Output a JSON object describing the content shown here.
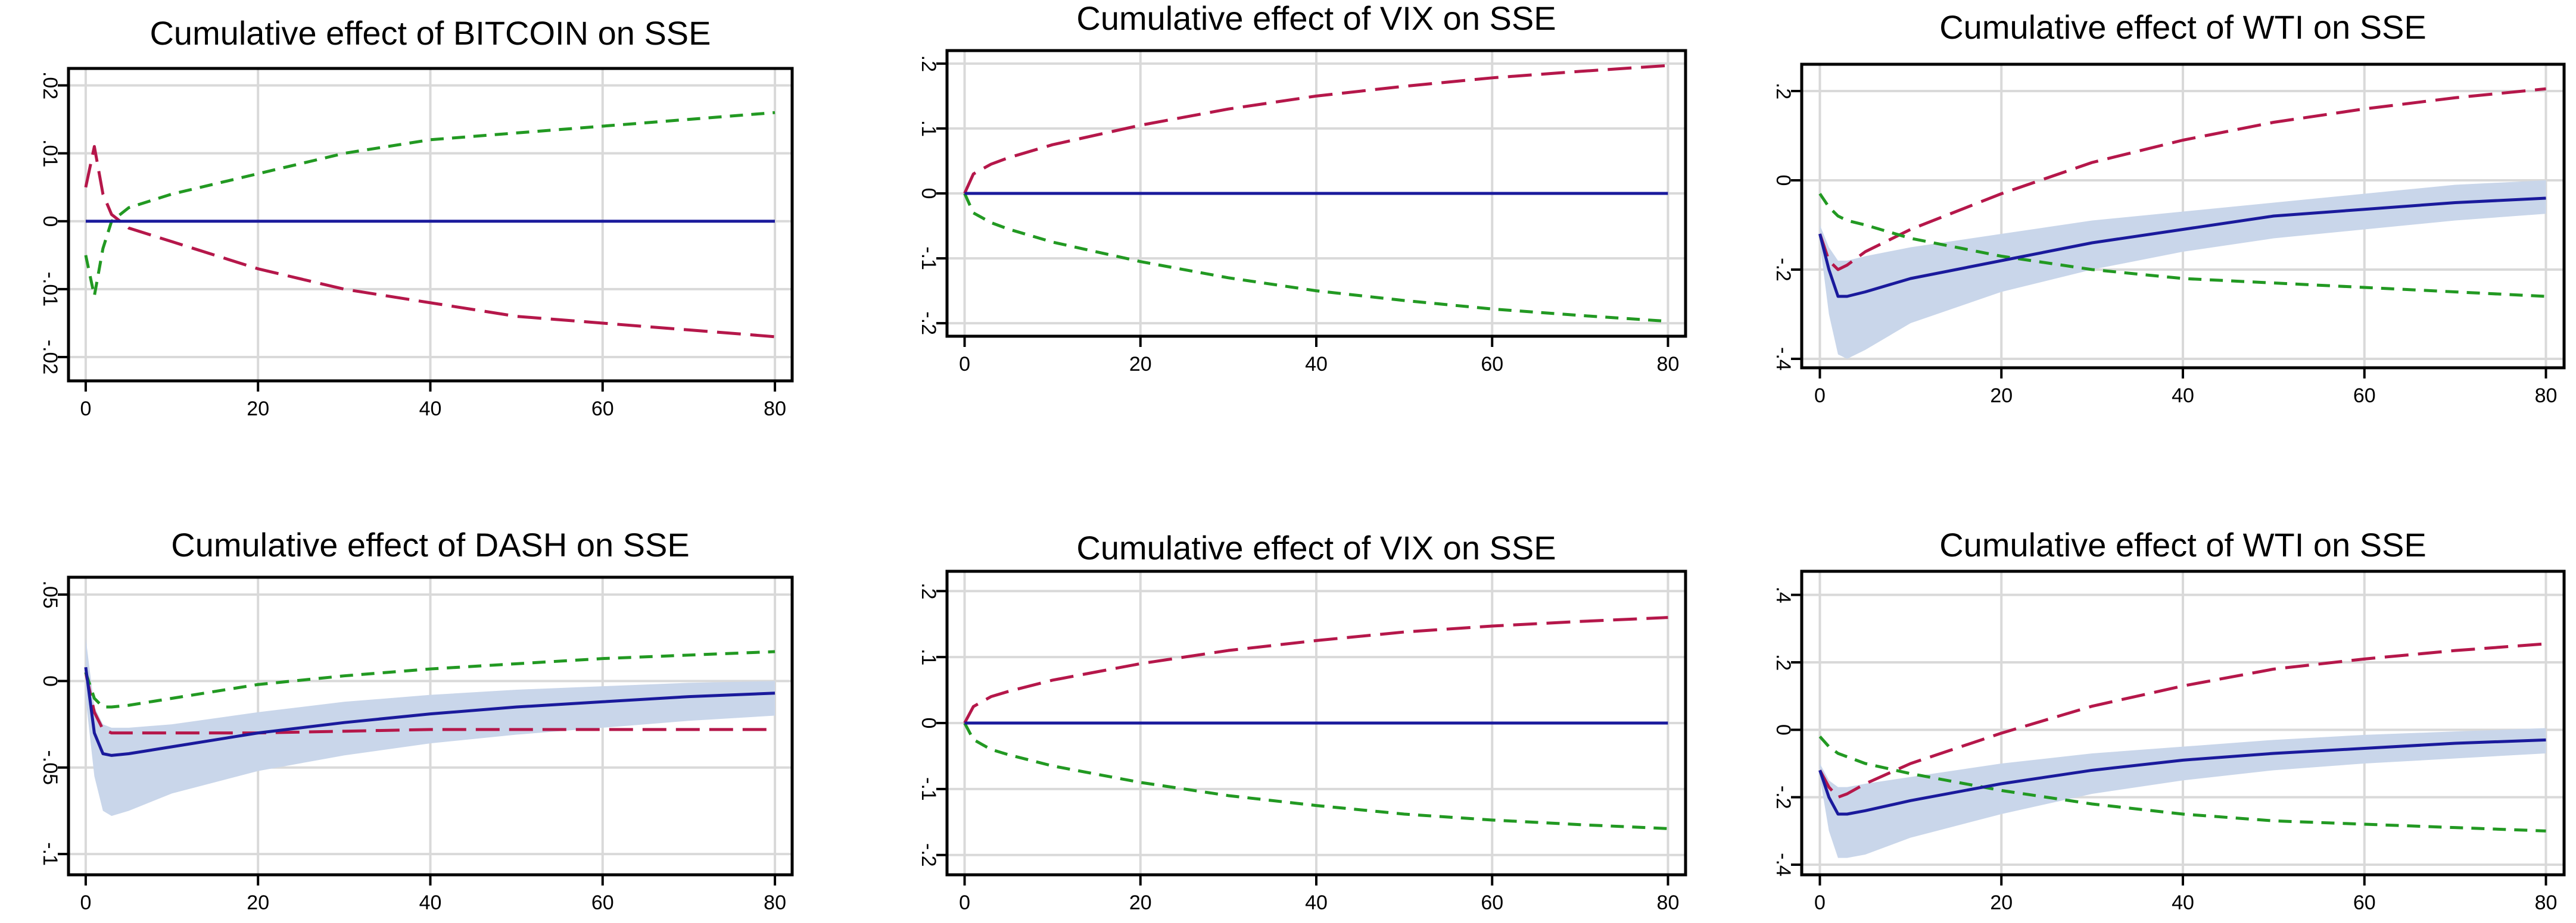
{
  "colors": {
    "upper_band": "#b5174a",
    "lower_band": "#229922",
    "irf": "#1a1a9c",
    "ci_fill": "#c9d6ea",
    "grid": "#d9d9d9",
    "frame": "#000000",
    "text": "#000000"
  },
  "chart_data": [
    {
      "type": "line",
      "title": "Cumulative effect of BITCOIN on SSE",
      "xlabel": "",
      "ylabel": "",
      "xlim": [
        -2,
        82
      ],
      "ylim": [
        -0.0235,
        0.0225
      ],
      "xticks": [
        0,
        20,
        40,
        60,
        80
      ],
      "xticklabels": [
        "0",
        "20",
        "40",
        "60",
        "80"
      ],
      "yticks": [
        -0.02,
        -0.01,
        0,
        0.01,
        0.02
      ],
      "yticklabels": [
        "-.02",
        "-.01",
        "0",
        ".01",
        ".02"
      ],
      "grid": true,
      "series": [
        {
          "name": "upper",
          "style": "dashed",
          "color": "#b5174a",
          "x": [
            0,
            1,
            2,
            3,
            5,
            10,
            20,
            30,
            40,
            50,
            60,
            70,
            80
          ],
          "y": [
            0.005,
            0.011,
            0.004,
            0.001,
            -0.001,
            -0.003,
            -0.007,
            -0.01,
            -0.012,
            -0.014,
            -0.015,
            -0.016,
            -0.017
          ]
        },
        {
          "name": "lower",
          "style": "dashed",
          "color": "#229922",
          "x": [
            0,
            1,
            2,
            3,
            5,
            10,
            20,
            30,
            40,
            50,
            60,
            70,
            80
          ],
          "y": [
            -0.005,
            -0.011,
            -0.004,
            0.0,
            0.002,
            0.004,
            0.007,
            0.01,
            0.012,
            0.013,
            0.014,
            0.015,
            0.016
          ]
        },
        {
          "name": "irf",
          "style": "solid",
          "color": "#1a1a9c",
          "x": [
            0,
            80
          ],
          "y": [
            0,
            0
          ]
        }
      ],
      "ci_band": null
    },
    {
      "type": "line",
      "title": "Cumulative effect of VIX on SSE",
      "xlabel": "",
      "ylabel": "",
      "xlim": [
        -2,
        82
      ],
      "ylim": [
        -0.22,
        0.22
      ],
      "xticks": [
        0,
        20,
        40,
        60,
        80
      ],
      "xticklabels": [
        "0",
        "20",
        "40",
        "60",
        "80"
      ],
      "yticks": [
        -0.2,
        -0.1,
        0,
        0.1,
        0.2
      ],
      "yticklabels": [
        "-.2",
        "-.1",
        "0",
        ".1",
        ".2"
      ],
      "grid": true,
      "series": [
        {
          "name": "upper",
          "style": "dashed",
          "color": "#b5174a",
          "x": [
            0,
            1,
            3,
            5,
            10,
            20,
            30,
            40,
            50,
            60,
            70,
            80
          ],
          "y": [
            0.0,
            0.03,
            0.045,
            0.055,
            0.075,
            0.105,
            0.13,
            0.15,
            0.165,
            0.178,
            0.188,
            0.197
          ]
        },
        {
          "name": "lower",
          "style": "dashed",
          "color": "#229922",
          "x": [
            0,
            1,
            3,
            5,
            10,
            20,
            30,
            40,
            50,
            60,
            70,
            80
          ],
          "y": [
            0.0,
            -0.03,
            -0.045,
            -0.055,
            -0.075,
            -0.105,
            -0.13,
            -0.15,
            -0.165,
            -0.178,
            -0.188,
            -0.197
          ]
        },
        {
          "name": "irf",
          "style": "solid",
          "color": "#1a1a9c",
          "x": [
            0,
            80
          ],
          "y": [
            0,
            0
          ]
        }
      ],
      "ci_band": null
    },
    {
      "type": "line",
      "title": "Cumulative effect of WTI on SSE",
      "xlabel": "",
      "ylabel": "",
      "xlim": [
        -2,
        82
      ],
      "ylim": [
        -0.42,
        0.26
      ],
      "xticks": [
        0,
        20,
        40,
        60,
        80
      ],
      "xticklabels": [
        "0",
        "20",
        "40",
        "60",
        "80"
      ],
      "yticks": [
        -0.4,
        -0.2,
        0,
        0.2
      ],
      "yticklabels": [
        "-.4",
        "-.2",
        "0",
        ".2"
      ],
      "grid": true,
      "series": [
        {
          "name": "upper",
          "style": "dashed",
          "color": "#b5174a",
          "x": [
            0,
            1,
            2,
            3,
            5,
            10,
            20,
            30,
            40,
            50,
            60,
            70,
            80
          ],
          "y": [
            -0.12,
            -0.18,
            -0.2,
            -0.19,
            -0.16,
            -0.11,
            -0.03,
            0.04,
            0.09,
            0.13,
            0.16,
            0.185,
            0.205
          ]
        },
        {
          "name": "lower",
          "style": "dashed",
          "color": "#229922",
          "x": [
            0,
            1,
            2,
            3,
            5,
            10,
            20,
            30,
            40,
            50,
            60,
            70,
            80
          ],
          "y": [
            -0.03,
            -0.06,
            -0.08,
            -0.09,
            -0.1,
            -0.13,
            -0.17,
            -0.2,
            -0.22,
            -0.23,
            -0.24,
            -0.25,
            -0.26
          ]
        },
        {
          "name": "irf",
          "style": "solid",
          "color": "#1a1a9c",
          "x": [
            0,
            1,
            2,
            3,
            5,
            10,
            20,
            30,
            40,
            50,
            60,
            70,
            80
          ],
          "y": [
            -0.12,
            -0.2,
            -0.26,
            -0.26,
            -0.25,
            -0.22,
            -0.18,
            -0.14,
            -0.11,
            -0.08,
            -0.065,
            -0.05,
            -0.04
          ]
        }
      ],
      "ci_band": {
        "x": [
          0,
          1,
          2,
          3,
          5,
          10,
          20,
          30,
          40,
          50,
          60,
          70,
          80
        ],
        "upper": [
          -0.1,
          -0.15,
          -0.18,
          -0.18,
          -0.17,
          -0.15,
          -0.12,
          -0.09,
          -0.07,
          -0.05,
          -0.03,
          -0.01,
          0.0
        ],
        "lower": [
          -0.14,
          -0.3,
          -0.39,
          -0.4,
          -0.38,
          -0.32,
          -0.25,
          -0.2,
          -0.16,
          -0.13,
          -0.11,
          -0.09,
          -0.075
        ]
      }
    },
    {
      "type": "line",
      "title": "Cumulative effect of DASH on SSE",
      "xlabel": "",
      "ylabel": "",
      "xlim": [
        -2,
        82
      ],
      "ylim": [
        -0.112,
        0.06
      ],
      "xticks": [
        0,
        20,
        40,
        60,
        80
      ],
      "xticklabels": [
        "0",
        "20",
        "40",
        "60",
        "80"
      ],
      "yticks": [
        -0.1,
        -0.05,
        0,
        0.05
      ],
      "yticklabels": [
        "-.1",
        "-.05",
        "0",
        ".05"
      ],
      "grid": true,
      "series": [
        {
          "name": "upper",
          "style": "dashed",
          "color": "#b5174a",
          "x": [
            0,
            1,
            2,
            3,
            5,
            10,
            20,
            30,
            40,
            50,
            60,
            70,
            80
          ],
          "y": [
            0.005,
            -0.018,
            -0.028,
            -0.03,
            -0.03,
            -0.03,
            -0.03,
            -0.029,
            -0.028,
            -0.028,
            -0.028,
            -0.028,
            -0.028
          ]
        },
        {
          "name": "lower",
          "style": "dashed",
          "color": "#229922",
          "x": [
            0,
            1,
            2,
            3,
            5,
            10,
            20,
            30,
            40,
            50,
            60,
            70,
            80
          ],
          "y": [
            0.005,
            -0.01,
            -0.015,
            -0.015,
            -0.014,
            -0.01,
            -0.002,
            0.003,
            0.007,
            0.01,
            0.013,
            0.015,
            0.017
          ]
        },
        {
          "name": "irf",
          "style": "solid",
          "color": "#1a1a9c",
          "x": [
            0,
            1,
            2,
            3,
            5,
            10,
            20,
            30,
            40,
            50,
            60,
            70,
            80
          ],
          "y": [
            0.008,
            -0.03,
            -0.042,
            -0.043,
            -0.042,
            -0.038,
            -0.03,
            -0.024,
            -0.019,
            -0.015,
            -0.012,
            -0.009,
            -0.007
          ]
        },
        {
          "name": "irf-upper-ticks",
          "style": "none",
          "color": "#1a1a9c",
          "x": [],
          "y": []
        }
      ],
      "ci_band": {
        "x": [
          0,
          1,
          2,
          3,
          5,
          10,
          20,
          30,
          40,
          50,
          60,
          70,
          80
        ],
        "upper": [
          0.025,
          -0.015,
          -0.025,
          -0.027,
          -0.027,
          -0.025,
          -0.018,
          -0.012,
          -0.008,
          -0.005,
          -0.003,
          -0.001,
          0.0
        ],
        "lower": [
          -0.01,
          -0.055,
          -0.075,
          -0.078,
          -0.075,
          -0.065,
          -0.052,
          -0.043,
          -0.036,
          -0.031,
          -0.027,
          -0.023,
          -0.02
        ]
      }
    },
    {
      "type": "line",
      "title": "Cumulative effect of VIX on SSE",
      "xlabel": "",
      "ylabel": "",
      "xlim": [
        -2,
        82
      ],
      "ylim": [
        -0.23,
        0.23
      ],
      "xticks": [
        0,
        20,
        40,
        60,
        80
      ],
      "xticklabels": [
        "0",
        "20",
        "40",
        "60",
        "80"
      ],
      "yticks": [
        -0.2,
        -0.1,
        0,
        0.1,
        0.2
      ],
      "yticklabels": [
        "-.2",
        "-.1",
        "0",
        ".1",
        ".2"
      ],
      "grid": true,
      "series": [
        {
          "name": "upper",
          "style": "dashed",
          "color": "#b5174a",
          "x": [
            0,
            1,
            3,
            5,
            10,
            20,
            30,
            40,
            50,
            60,
            70,
            80
          ],
          "y": [
            0.0,
            0.025,
            0.04,
            0.048,
            0.065,
            0.09,
            0.11,
            0.125,
            0.138,
            0.147,
            0.154,
            0.16
          ]
        },
        {
          "name": "lower",
          "style": "dashed",
          "color": "#229922",
          "x": [
            0,
            1,
            3,
            5,
            10,
            20,
            30,
            40,
            50,
            60,
            70,
            80
          ],
          "y": [
            0.0,
            -0.025,
            -0.04,
            -0.048,
            -0.065,
            -0.09,
            -0.11,
            -0.125,
            -0.138,
            -0.147,
            -0.154,
            -0.16
          ]
        },
        {
          "name": "irf",
          "style": "solid",
          "color": "#1a1a9c",
          "x": [
            0,
            80
          ],
          "y": [
            0,
            0
          ]
        }
      ],
      "ci_band": null
    },
    {
      "type": "line",
      "title": "Cumulative effect of WTI on SSE",
      "xlabel": "",
      "ylabel": "",
      "xlim": [
        -2,
        82
      ],
      "ylim": [
        -0.43,
        0.47
      ],
      "xticks": [
        0,
        20,
        40,
        60,
        80
      ],
      "xticklabels": [
        "0",
        "20",
        "40",
        "60",
        "80"
      ],
      "yticks": [
        -0.4,
        -0.2,
        0,
        0.2,
        0.4
      ],
      "yticklabels": [
        "-.4",
        "-.2",
        "0",
        ".2",
        ".4"
      ],
      "grid": true,
      "series": [
        {
          "name": "upper",
          "style": "dashed",
          "color": "#b5174a",
          "x": [
            0,
            1,
            2,
            3,
            5,
            10,
            20,
            30,
            40,
            50,
            60,
            70,
            80
          ],
          "y": [
            -0.12,
            -0.17,
            -0.2,
            -0.19,
            -0.16,
            -0.1,
            -0.01,
            0.07,
            0.13,
            0.18,
            0.21,
            0.235,
            0.255
          ]
        },
        {
          "name": "lower",
          "style": "dashed",
          "color": "#229922",
          "x": [
            0,
            1,
            2,
            3,
            5,
            10,
            20,
            30,
            40,
            50,
            60,
            70,
            80
          ],
          "y": [
            -0.02,
            -0.05,
            -0.07,
            -0.08,
            -0.1,
            -0.13,
            -0.18,
            -0.22,
            -0.25,
            -0.27,
            -0.28,
            -0.29,
            -0.3
          ]
        },
        {
          "name": "irf",
          "style": "solid",
          "color": "#1a1a9c",
          "x": [
            0,
            1,
            2,
            3,
            5,
            10,
            20,
            30,
            40,
            50,
            60,
            70,
            80
          ],
          "y": [
            -0.12,
            -0.2,
            -0.25,
            -0.25,
            -0.24,
            -0.21,
            -0.16,
            -0.12,
            -0.09,
            -0.07,
            -0.055,
            -0.04,
            -0.03
          ]
        }
      ],
      "ci_band": {
        "x": [
          0,
          1,
          2,
          3,
          5,
          10,
          20,
          30,
          40,
          50,
          60,
          70,
          80
        ],
        "upper": [
          -0.1,
          -0.15,
          -0.17,
          -0.17,
          -0.16,
          -0.14,
          -0.1,
          -0.07,
          -0.05,
          -0.03,
          -0.015,
          -0.005,
          0.005
        ],
        "lower": [
          -0.14,
          -0.3,
          -0.38,
          -0.38,
          -0.37,
          -0.32,
          -0.25,
          -0.19,
          -0.15,
          -0.12,
          -0.1,
          -0.085,
          -0.07
        ]
      }
    }
  ]
}
